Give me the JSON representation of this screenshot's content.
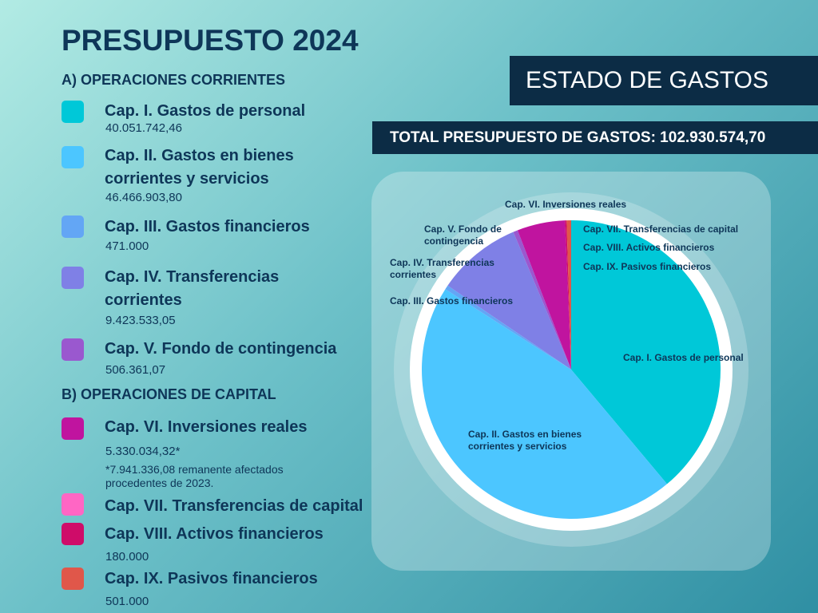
{
  "chart_data": {
    "type": "pie",
    "title": "PRESUPUESTO 2024",
    "subtitle": "ESTADO DE GASTOS",
    "total_label": "TOTAL PRESUPUESTO DE GASTOS: 102.930.574,70",
    "section_a": "A) OPERACIONES CORRIENTES",
    "section_b": "B) OPERACIONES DE CAPITAL",
    "categories": [
      "Cap. I. Gastos de personal",
      "Cap. II. Gastos en bienes corrientes y servicios",
      "Cap. III. Gastos financieros",
      "Cap. IV. Transferencias corrientes",
      "Cap. V. Fondo de contingencia",
      "Cap. VI. Inversiones reales",
      "Cap. VII. Transferencias de capital",
      "Cap. VIII. Activos financieros",
      "Cap. IX. Pasivos financieros"
    ],
    "values": [
      40051742.46,
      46466903.8,
      471000,
      9423533.05,
      506361.07,
      5330034.32,
      0,
      180000,
      501000
    ],
    "value_labels": [
      "40.051.742,46",
      "46.466.903,80",
      "471.000",
      "9.423.533,05",
      "506.361,07",
      "5.330.034,32*",
      null,
      "180.000",
      "501.000"
    ],
    "colors": [
      "#00c8d8",
      "#4cc6ff",
      "#63a6f5",
      "#7f80e6",
      "#9a58cf",
      "#c0149f",
      "#ff66c4",
      "#cf0c69",
      "#e0574a"
    ],
    "note": "*7.941.336,08 remanente afectados procedentes de 2023."
  }
}
